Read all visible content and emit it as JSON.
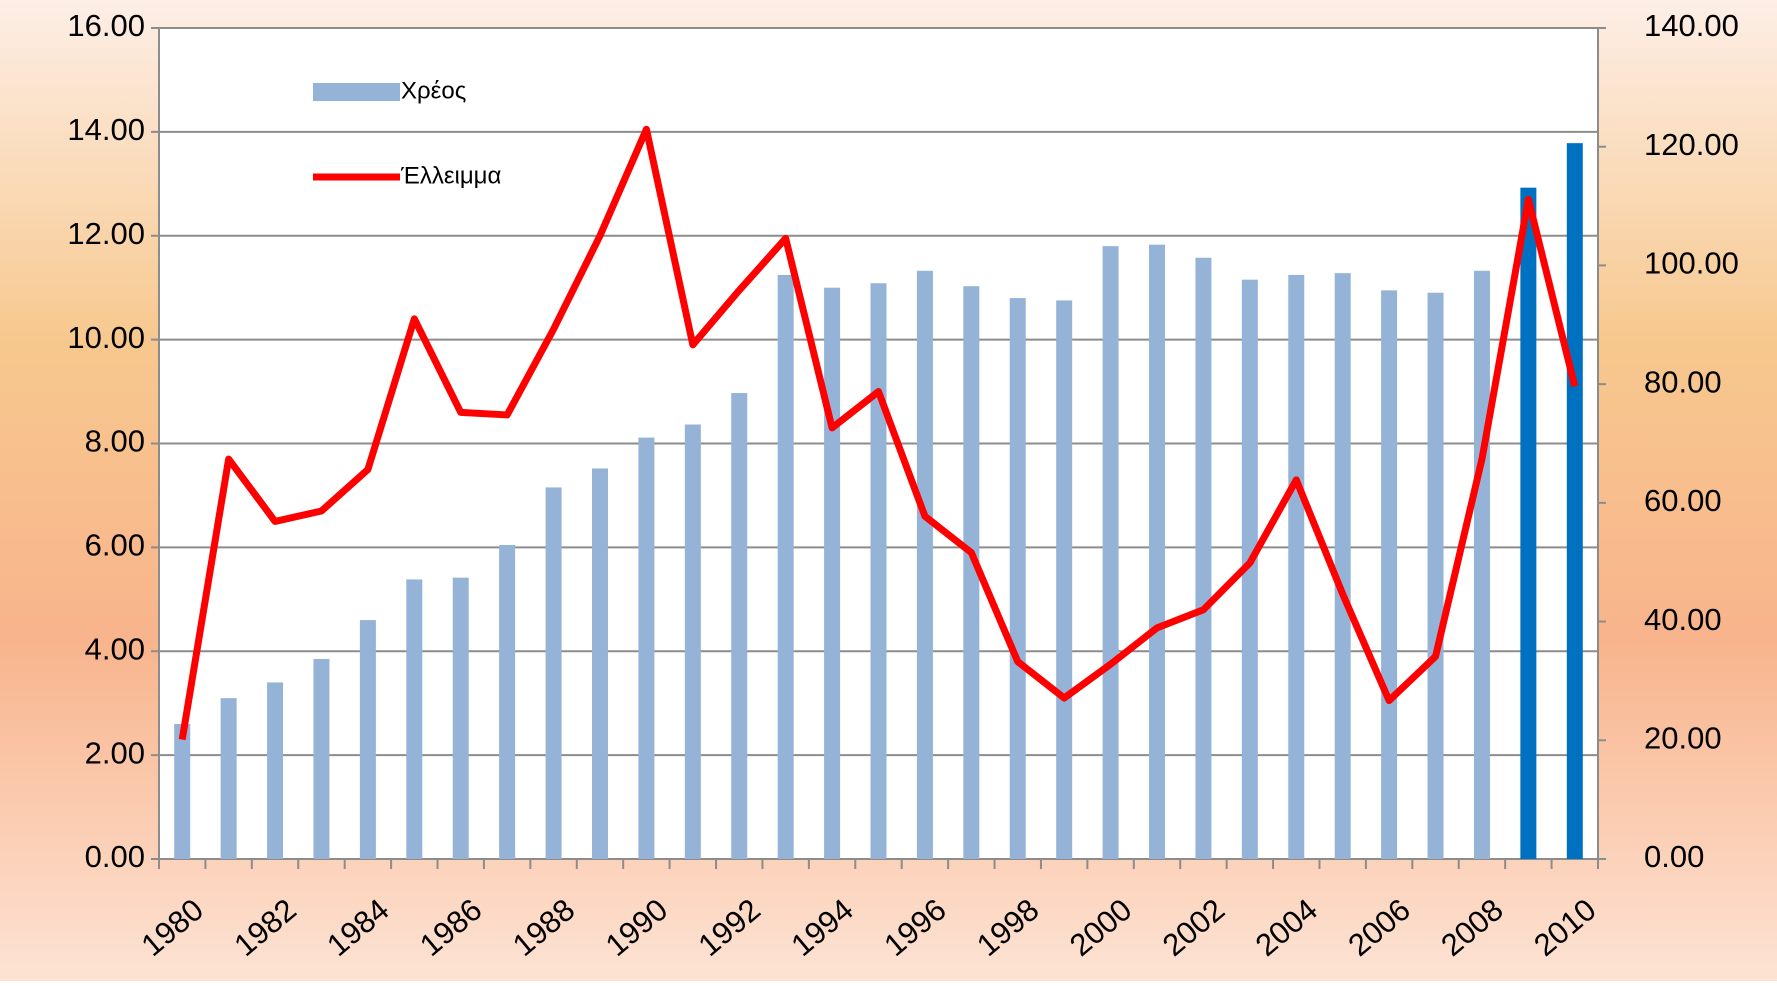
{
  "chart_data": {
    "type": "bar_line",
    "categories": [
      "1980",
      null,
      "1982",
      null,
      "1984",
      null,
      "1986",
      null,
      "1988",
      null,
      "1990",
      null,
      "1992",
      null,
      "1994",
      null,
      "1996",
      null,
      "1998",
      null,
      "2000",
      null,
      "2002",
      null,
      "2004",
      null,
      "2006",
      null,
      "2008",
      null,
      "2010"
    ],
    "series": [
      {
        "name": "Χρέος",
        "type": "bar",
        "axis": "y2",
        "color": "#95b3d7",
        "colors": [
          "#95b3d7",
          "#95b3d7",
          "#95b3d7",
          "#95b3d7",
          "#95b3d7",
          "#95b3d7",
          "#95b3d7",
          "#95b3d7",
          "#95b3d7",
          "#95b3d7",
          "#95b3d7",
          "#95b3d7",
          "#95b3d7",
          "#95b3d7",
          "#95b3d7",
          "#95b3d7",
          "#95b3d7",
          "#95b3d7",
          "#95b3d7",
          "#95b3d7",
          "#95b3d7",
          "#95b3d7",
          "#95b3d7",
          "#95b3d7",
          "#95b3d7",
          "#95b3d7",
          "#95b3d7",
          "#95b3d7",
          "#95b3d7",
          "#0070c0",
          "#0070c0"
        ],
        "values": [
          22.75,
          27.1,
          29.75,
          33.7,
          40.25,
          47.1,
          47.4,
          52.9,
          62.6,
          65.8,
          71.0,
          73.2,
          78.5,
          98.4,
          96.25,
          97.0,
          99.1,
          96.5,
          94.5,
          94.1,
          103.25,
          103.5,
          101.3,
          97.6,
          98.4,
          98.7,
          95.8,
          95.4,
          99.1,
          113.1,
          120.6
        ]
      },
      {
        "name": "Έλλειμμα",
        "type": "line",
        "axis": "y",
        "color": "#ff0000",
        "values": [
          2.3,
          7.7,
          6.5,
          6.7,
          7.5,
          10.4,
          8.6,
          8.55,
          10.2,
          12.0,
          14.05,
          9.9,
          10.95,
          11.95,
          8.3,
          9.0,
          6.6,
          5.9,
          3.8,
          3.1,
          3.75,
          4.45,
          4.8,
          5.7,
          7.3,
          5.1,
          3.05,
          3.9,
          7.7,
          12.7,
          9.1
        ]
      }
    ],
    "ylim": [
      0,
      16
    ],
    "yticks": [
      {
        "value": 0,
        "label": "0.00"
      },
      {
        "value": 2,
        "label": "2.00"
      },
      {
        "value": 4,
        "label": "4.00"
      },
      {
        "value": 6,
        "label": "6.00"
      },
      {
        "value": 8,
        "label": "8.00"
      },
      {
        "value": 10,
        "label": "10.00"
      },
      {
        "value": 12,
        "label": "12.00"
      },
      {
        "value": 14,
        "label": "14.00"
      },
      {
        "value": 16,
        "label": "16.00"
      }
    ],
    "y2lim": [
      0,
      140
    ],
    "y2ticks": [
      {
        "value": 0,
        "label": "0.00"
      },
      {
        "value": 20,
        "label": "20.00"
      },
      {
        "value": 40,
        "label": "40.00"
      },
      {
        "value": 60,
        "label": "60.00"
      },
      {
        "value": 80,
        "label": "80.00"
      },
      {
        "value": 100,
        "label": "100.00"
      },
      {
        "value": 120,
        "label": "120.00"
      },
      {
        "value": 140,
        "label": "140.00"
      }
    ],
    "grid": true,
    "legend": "upper left"
  }
}
